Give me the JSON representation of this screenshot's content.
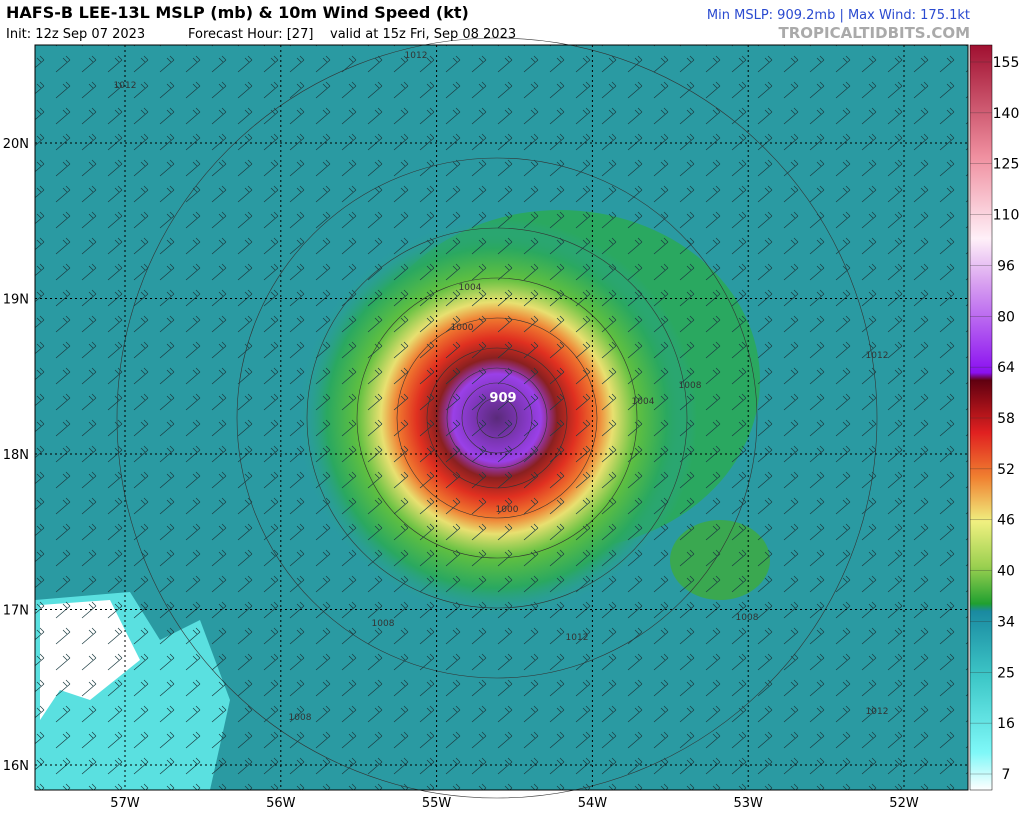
{
  "header": {
    "title": "HAFS-B LEE-13L MSLP (mb) & 10m Wind Speed (kt)",
    "init": "Init: 12z Sep 07 2023",
    "forecast_hour": "Forecast Hour: [27]",
    "valid": "valid at 15z Fri, Sep 08 2023",
    "stats": "Min MSLP: 909.2mb | Max Wind: 175.1kt",
    "site": "TROPICALTIDBITS.COM"
  },
  "latitudes": [
    "20N",
    "19N",
    "18N",
    "17N",
    "16N"
  ],
  "longitudes": [
    "57W",
    "56W",
    "55W",
    "54W",
    "53W",
    "52W"
  ],
  "colorbar_ticks": [
    155,
    140,
    125,
    110,
    96,
    80,
    64,
    58,
    52,
    46,
    40,
    34,
    25,
    16,
    7
  ],
  "contour_labels": [
    "1012",
    "1012",
    "1008",
    "1004",
    "1000",
    "1000",
    "909",
    "1004",
    "1008",
    "1012",
    "1008",
    "1008",
    "1012",
    "1012"
  ]
}
